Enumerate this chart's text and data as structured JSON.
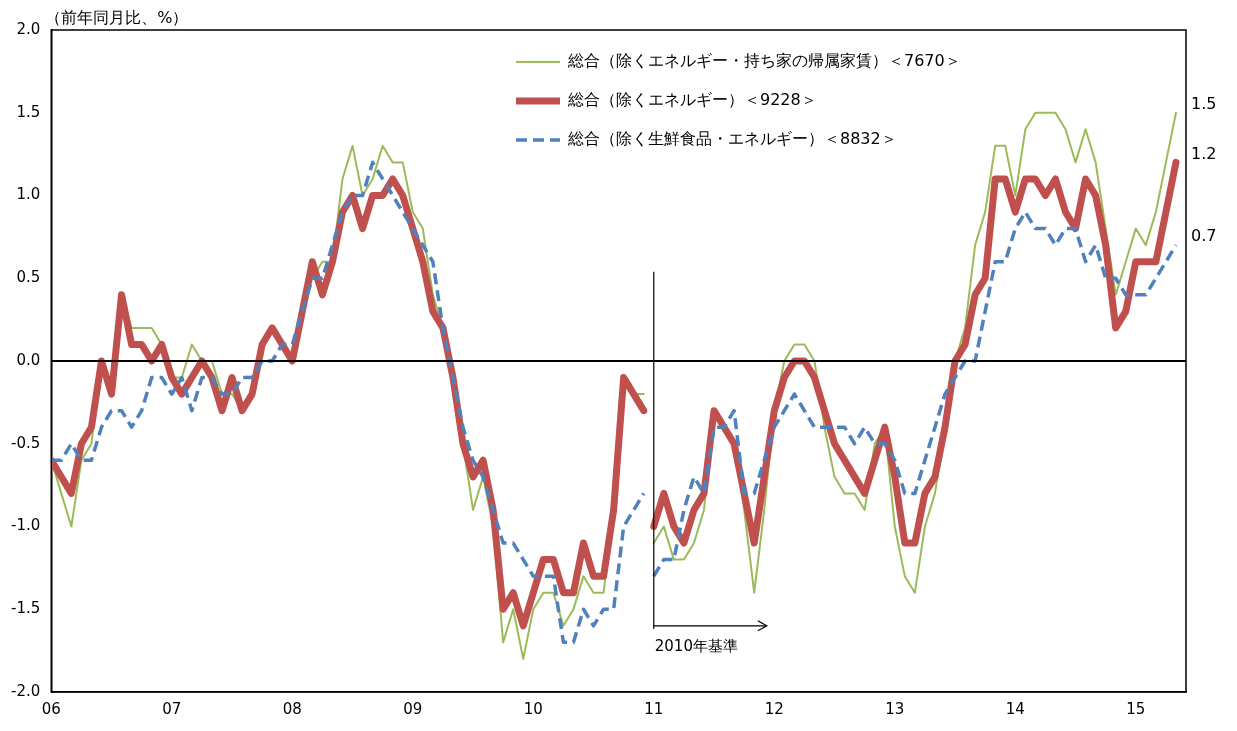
{
  "chart_data": {
    "type": "line",
    "ylabel": "（前年同月比、%）",
    "legend": "top right",
    "grid": false,
    "marker": "none",
    "xlim": [
      "2006-01",
      "2015-06"
    ],
    "xticks": [
      {
        "value": "2006-01",
        "label": "06"
      },
      {
        "value": "2007-01",
        "label": "07"
      },
      {
        "value": "2008-01",
        "label": "08"
      },
      {
        "value": "2009-01",
        "label": "09"
      },
      {
        "value": "2010-01",
        "label": "10"
      },
      {
        "value": "2011-01",
        "label": "11"
      },
      {
        "value": "2012-01",
        "label": "12"
      },
      {
        "value": "2013-01",
        "label": "13"
      },
      {
        "value": "2014-01",
        "label": "14"
      },
      {
        "value": "2015-01",
        "label": "15"
      }
    ],
    "ylim": [
      -2,
      2
    ],
    "yticks": [
      {
        "value": -2,
        "label": "-2.0"
      },
      {
        "value": -1.5,
        "label": "-1.5"
      },
      {
        "value": -1,
        "label": "-1.0"
      },
      {
        "value": -0.5,
        "label": "-0.5"
      },
      {
        "value": 0,
        "label": "0.0"
      },
      {
        "value": 0.5,
        "label": "0.5"
      },
      {
        "value": 1,
        "label": "1.0"
      },
      {
        "value": 1.5,
        "label": "1.5"
      },
      {
        "value": 2,
        "label": "2.0"
      }
    ],
    "ref_lines": [
      {
        "axis": "y",
        "value": 0,
        "color": "#000000"
      },
      {
        "axis": "x",
        "value": "2011-01",
        "label": "2010年基準",
        "color": "#000000"
      }
    ],
    "annotations": [
      {
        "text": "1.5",
        "x": "2015-05",
        "y": 1.5
      },
      {
        "text": "1.2",
        "x": "2015-05",
        "y": 1.2
      },
      {
        "text": "0.7",
        "x": "2015-05",
        "y": 0.7
      }
    ],
    "series": [
      {
        "name": "総合（除くエネルギー・持ち家の帰属家賃）＜7670＞",
        "color": "#9bbb59",
        "line_style": "solid",
        "x": [
          "2006-01",
          "2006-02",
          "2006-03",
          "2006-04",
          "2006-05",
          "2006-06",
          "2006-07",
          "2006-08",
          "2006-09",
          "2006-10",
          "2006-11",
          "2006-12",
          "2007-01",
          "2007-02",
          "2007-03",
          "2007-04",
          "2007-05",
          "2007-06",
          "2007-07",
          "2007-08",
          "2007-09",
          "2007-10",
          "2007-11",
          "2007-12",
          "2008-01",
          "2008-02",
          "2008-03",
          "2008-04",
          "2008-05",
          "2008-06",
          "2008-07",
          "2008-08",
          "2008-09",
          "2008-10",
          "2008-11",
          "2008-12",
          "2009-01",
          "2009-02",
          "2009-03",
          "2009-04",
          "2009-05",
          "2009-06",
          "2009-07",
          "2009-08",
          "2009-09",
          "2009-10",
          "2009-11",
          "2009-12",
          "2010-01",
          "2010-02",
          "2010-03",
          "2010-04",
          "2010-05",
          "2010-06",
          "2010-07",
          "2010-08",
          "2010-09",
          "2010-10",
          "2010-11",
          "2010-12"
        ],
        "values": [
          -0.6,
          -0.8,
          -1.0,
          -0.6,
          -0.5,
          0.0,
          -0.2,
          0.4,
          0.2,
          0.2,
          0.2,
          0.1,
          -0.1,
          -0.1,
          0.1,
          0.0,
          0.0,
          -0.2,
          -0.2,
          -0.3,
          -0.2,
          0.1,
          0.2,
          0.1,
          0.0,
          0.3,
          0.5,
          0.6,
          0.6,
          1.1,
          1.3,
          1.0,
          1.1,
          1.3,
          1.2,
          1.2,
          0.9,
          0.8,
          0.4,
          0.2,
          -0.1,
          -0.5,
          -0.9,
          -0.7,
          -1.0,
          -1.7,
          -1.5,
          -1.8,
          -1.5,
          -1.4,
          -1.4,
          -1.6,
          -1.5,
          -1.3,
          -1.4,
          -1.4,
          -0.9,
          -0.1,
          -0.2,
          -0.2
        ]
      },
      {
        "name": "総合（除くエネルギー）＜9228＞",
        "color": "#c0504d",
        "line_style": "solid",
        "x": [
          "2006-01",
          "2006-02",
          "2006-03",
          "2006-04",
          "2006-05",
          "2006-06",
          "2006-07",
          "2006-08",
          "2006-09",
          "2006-10",
          "2006-11",
          "2006-12",
          "2007-01",
          "2007-02",
          "2007-03",
          "2007-04",
          "2007-05",
          "2007-06",
          "2007-07",
          "2007-08",
          "2007-09",
          "2007-10",
          "2007-11",
          "2007-12",
          "2008-01",
          "2008-02",
          "2008-03",
          "2008-04",
          "2008-05",
          "2008-06",
          "2008-07",
          "2008-08",
          "2008-09",
          "2008-10",
          "2008-11",
          "2008-12",
          "2009-01",
          "2009-02",
          "2009-03",
          "2009-04",
          "2009-05",
          "2009-06",
          "2009-07",
          "2009-08",
          "2009-09",
          "2009-10",
          "2009-11",
          "2009-12",
          "2010-01",
          "2010-02",
          "2010-03",
          "2010-04",
          "2010-05",
          "2010-06",
          "2010-07",
          "2010-08",
          "2010-09",
          "2010-10",
          "2010-11",
          "2010-12"
        ],
        "values": [
          -0.6,
          -0.7,
          -0.8,
          -0.5,
          -0.4,
          0.0,
          -0.2,
          0.4,
          0.1,
          0.1,
          0.0,
          0.1,
          -0.1,
          -0.2,
          -0.1,
          0.0,
          -0.1,
          -0.3,
          -0.1,
          -0.3,
          -0.2,
          0.1,
          0.2,
          0.1,
          0.0,
          0.3,
          0.6,
          0.4,
          0.6,
          0.9,
          1.0,
          0.8,
          1.0,
          1.0,
          1.1,
          1.0,
          0.8,
          0.6,
          0.3,
          0.2,
          -0.1,
          -0.5,
          -0.7,
          -0.6,
          -0.9,
          -1.5,
          -1.4,
          -1.6,
          -1.4,
          -1.2,
          -1.2,
          -1.4,
          -1.4,
          -1.1,
          -1.3,
          -1.3,
          -0.9,
          -0.1,
          -0.2,
          -0.3
        ]
      },
      {
        "name": "総合（除く生鮮食品・エネルギー）＜8832＞",
        "color": "#4f81bd",
        "line_style": "dashed",
        "x": [
          "2006-01",
          "2006-02",
          "2006-03",
          "2006-04",
          "2006-05",
          "2006-06",
          "2006-07",
          "2006-08",
          "2006-09",
          "2006-10",
          "2006-11",
          "2006-12",
          "2007-01",
          "2007-02",
          "2007-03",
          "2007-04",
          "2007-05",
          "2007-06",
          "2007-07",
          "2007-08",
          "2007-09",
          "2007-10",
          "2007-11",
          "2007-12",
          "2008-01",
          "2008-02",
          "2008-03",
          "2008-04",
          "2008-05",
          "2008-06",
          "2008-07",
          "2008-08",
          "2008-09",
          "2008-10",
          "2008-11",
          "2008-12",
          "2009-01",
          "2009-02",
          "2009-03",
          "2009-04",
          "2009-05",
          "2009-06",
          "2009-07",
          "2009-08",
          "2009-09",
          "2009-10",
          "2009-11",
          "2009-12",
          "2010-01",
          "2010-02",
          "2010-03",
          "2010-04",
          "2010-05",
          "2010-06",
          "2010-07",
          "2010-08",
          "2010-09",
          "2010-10",
          "2010-11",
          "2010-12"
        ],
        "values": [
          -0.6,
          -0.6,
          -0.5,
          -0.6,
          -0.6,
          -0.4,
          -0.3,
          -0.3,
          -0.4,
          -0.3,
          -0.1,
          -0.1,
          -0.2,
          -0.1,
          -0.3,
          -0.1,
          -0.1,
          -0.2,
          -0.2,
          -0.1,
          -0.1,
          0.0,
          0.0,
          0.1,
          0.1,
          0.3,
          0.5,
          0.5,
          0.7,
          0.9,
          1.0,
          1.0,
          1.2,
          1.1,
          1.0,
          0.9,
          0.8,
          0.7,
          0.6,
          0.2,
          -0.1,
          -0.4,
          -0.6,
          -0.7,
          -0.9,
          -1.1,
          -1.1,
          -1.2,
          -1.3,
          -1.3,
          -1.3,
          -1.7,
          -1.7,
          -1.5,
          -1.6,
          -1.5,
          -1.5,
          -1.0,
          -0.9,
          -0.8
        ]
      },
      {
        "color": "#9bbb59",
        "line_style": "solid",
        "x": [
          "2011-01",
          "2011-02",
          "2011-03",
          "2011-04",
          "2011-05",
          "2011-06",
          "2011-07",
          "2011-08",
          "2011-09",
          "2011-10",
          "2011-11",
          "2011-12",
          "2012-01",
          "2012-02",
          "2012-03",
          "2012-04",
          "2012-05",
          "2012-06",
          "2012-07",
          "2012-08",
          "2012-09",
          "2012-10",
          "2012-11",
          "2012-12",
          "2013-01",
          "2013-02",
          "2013-03",
          "2013-04",
          "2013-05",
          "2013-06",
          "2013-07",
          "2013-08",
          "2013-09",
          "2013-10",
          "2013-11",
          "2013-12",
          "2014-01",
          "2014-02",
          "2014-03",
          "2014-04",
          "2014-05",
          "2014-06",
          "2014-07",
          "2014-08",
          "2014-09",
          "2014-10",
          "2014-11",
          "2014-12",
          "2015-01",
          "2015-02",
          "2015-03",
          "2015-04",
          "2015-05"
        ],
        "values": [
          -1.1,
          -1.0,
          -1.2,
          -1.2,
          -1.1,
          -0.9,
          -0.3,
          -0.4,
          -0.5,
          -0.9,
          -1.4,
          -0.9,
          -0.3,
          0.0,
          0.1,
          0.1,
          0.0,
          -0.4,
          -0.7,
          -0.8,
          -0.8,
          -0.9,
          -0.5,
          -0.4,
          -1.0,
          -1.3,
          -1.4,
          -1.0,
          -0.8,
          -0.4,
          0.0,
          0.2,
          0.7,
          0.9,
          1.3,
          1.3,
          1.0,
          1.4,
          1.5,
          1.5,
          1.5,
          1.4,
          1.2,
          1.4,
          1.2,
          0.8,
          0.4,
          0.6,
          0.8,
          0.7,
          0.9,
          1.2,
          1.5
        ]
      },
      {
        "color": "#c0504d",
        "line_style": "solid",
        "x": [
          "2011-01",
          "2011-02",
          "2011-03",
          "2011-04",
          "2011-05",
          "2011-06",
          "2011-07",
          "2011-08",
          "2011-09",
          "2011-10",
          "2011-11",
          "2011-12",
          "2012-01",
          "2012-02",
          "2012-03",
          "2012-04",
          "2012-05",
          "2012-06",
          "2012-07",
          "2012-08",
          "2012-09",
          "2012-10",
          "2012-11",
          "2012-12",
          "2013-01",
          "2013-02",
          "2013-03",
          "2013-04",
          "2013-05",
          "2013-06",
          "2013-07",
          "2013-08",
          "2013-09",
          "2013-10",
          "2013-11",
          "2013-12",
          "2014-01",
          "2014-02",
          "2014-03",
          "2014-04",
          "2014-05",
          "2014-06",
          "2014-07",
          "2014-08",
          "2014-09",
          "2014-10",
          "2014-11",
          "2014-12",
          "2015-01",
          "2015-02",
          "2015-03",
          "2015-04",
          "2015-05"
        ],
        "values": [
          -1.0,
          -0.8,
          -1.0,
          -1.1,
          -0.9,
          -0.8,
          -0.3,
          -0.4,
          -0.5,
          -0.8,
          -1.1,
          -0.7,
          -0.3,
          -0.1,
          0.0,
          0.0,
          -0.1,
          -0.3,
          -0.5,
          -0.6,
          -0.7,
          -0.8,
          -0.6,
          -0.4,
          -0.7,
          -1.1,
          -1.1,
          -0.8,
          -0.7,
          -0.4,
          0.0,
          0.1,
          0.4,
          0.5,
          1.1,
          1.1,
          0.9,
          1.1,
          1.1,
          1.0,
          1.1,
          0.9,
          0.8,
          1.1,
          1.0,
          0.7,
          0.2,
          0.3,
          0.6,
          0.6,
          0.6,
          0.9,
          1.2
        ]
      },
      {
        "color": "#4f81bd",
        "line_style": "dashed",
        "x": [
          "2011-01",
          "2011-02",
          "2011-03",
          "2011-04",
          "2011-05",
          "2011-06",
          "2011-07",
          "2011-08",
          "2011-09",
          "2011-10",
          "2011-11",
          "2011-12",
          "2012-01",
          "2012-02",
          "2012-03",
          "2012-04",
          "2012-05",
          "2012-06",
          "2012-07",
          "2012-08",
          "2012-09",
          "2012-10",
          "2012-11",
          "2012-12",
          "2013-01",
          "2013-02",
          "2013-03",
          "2013-04",
          "2013-05",
          "2013-06",
          "2013-07",
          "2013-08",
          "2013-09",
          "2013-10",
          "2013-11",
          "2013-12",
          "2014-01",
          "2014-02",
          "2014-03",
          "2014-04",
          "2014-05",
          "2014-06",
          "2014-07",
          "2014-08",
          "2014-09",
          "2014-10",
          "2014-11",
          "2014-12",
          "2015-01",
          "2015-02",
          "2015-03",
          "2015-04",
          "2015-05"
        ],
        "values": [
          -1.3,
          -1.2,
          -1.2,
          -0.9,
          -0.7,
          -0.8,
          -0.4,
          -0.4,
          -0.3,
          -0.8,
          -0.8,
          -0.6,
          -0.4,
          -0.3,
          -0.2,
          -0.3,
          -0.4,
          -0.4,
          -0.4,
          -0.4,
          -0.5,
          -0.4,
          -0.5,
          -0.5,
          -0.6,
          -0.8,
          -0.8,
          -0.6,
          -0.4,
          -0.2,
          -0.1,
          0.0,
          0.0,
          0.3,
          0.6,
          0.6,
          0.8,
          0.9,
          0.8,
          0.8,
          0.7,
          0.8,
          0.8,
          0.6,
          0.7,
          0.5,
          0.5,
          0.4,
          0.4,
          0.4,
          0.5,
          0.6,
          0.7
        ]
      }
    ]
  }
}
